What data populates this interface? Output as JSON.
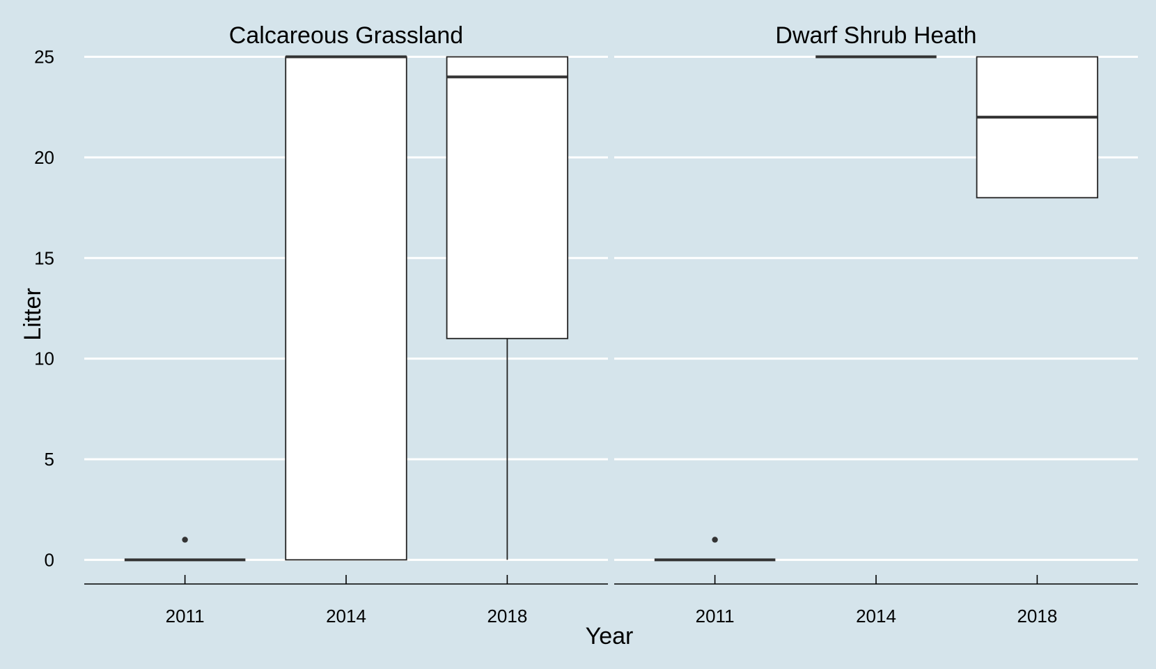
{
  "chart_data": {
    "type": "boxplot",
    "xlabel": "Year",
    "ylabel": "Litter",
    "ylim": [
      -1.2,
      25.4
    ],
    "y_ticks": [
      0,
      5,
      10,
      15,
      20,
      25
    ],
    "categories": [
      "2011",
      "2014",
      "2018"
    ],
    "grid": "horizontal",
    "facets": [
      {
        "title": "Calcareous Grassland",
        "boxes": [
          {
            "category": "2011",
            "min": 0,
            "q1": 0,
            "median": 0,
            "q3": 0,
            "max": 0,
            "outliers": [
              1
            ]
          },
          {
            "category": "2014",
            "min": 0,
            "q1": 0,
            "median": 25,
            "q3": 25,
            "max": 25,
            "outliers": []
          },
          {
            "category": "2018",
            "min": 0,
            "q1": 11,
            "median": 24,
            "q3": 25,
            "max": 25,
            "outliers": []
          }
        ]
      },
      {
        "title": "Dwarf Shrub Heath",
        "boxes": [
          {
            "category": "2011",
            "min": 0,
            "q1": 0,
            "median": 0,
            "q3": 0,
            "max": 0,
            "outliers": [
              1
            ]
          },
          {
            "category": "2014",
            "min": 25,
            "q1": 25,
            "median": 25,
            "q3": 25,
            "max": 25,
            "outliers": []
          },
          {
            "category": "2018",
            "min": 18,
            "q1": 18,
            "median": 22,
            "q3": 25,
            "max": 25,
            "outliers": []
          }
        ]
      }
    ]
  }
}
